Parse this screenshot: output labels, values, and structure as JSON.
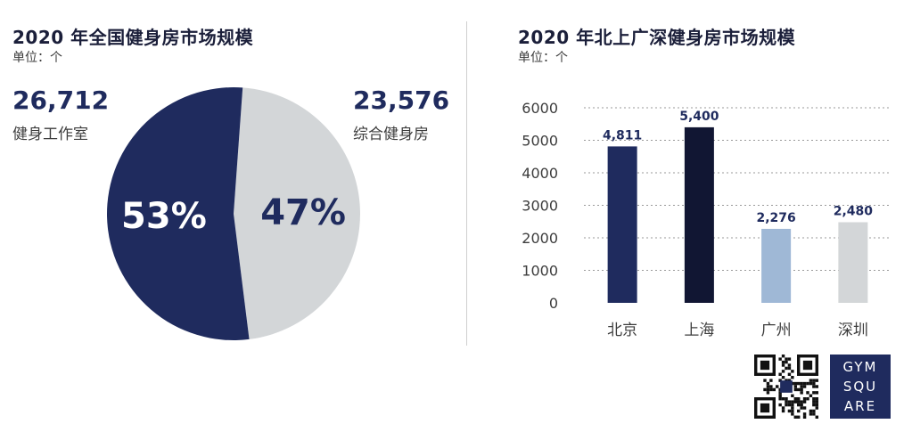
{
  "pie_panel": {
    "title": "2020 年全国健身房市场规模",
    "unit": "单位：个"
  },
  "bar_panel": {
    "title": "2020 年北上广深健身房市场规模",
    "unit": "单位：个"
  },
  "logo": {
    "lines": [
      "GYM",
      "SQU",
      "ARE"
    ]
  },
  "colors": {
    "navy": "#1f2b5e",
    "dark": "#111633",
    "light_blue": "#9fb8d6",
    "light_gray": "#d3d6d8",
    "pie_light": "#d3d6d8"
  },
  "chart_data": [
    {
      "type": "pie",
      "slices": [
        {
          "label": "健身工作室",
          "value": 26712,
          "value_text": "26,712",
          "percent_text": "53%",
          "color": "#1f2b5e"
        },
        {
          "label": "综合健身房",
          "value": 23576,
          "value_text": "23,576",
          "percent_text": "47%",
          "color": "#d3d6d8"
        }
      ]
    },
    {
      "type": "bar",
      "categories": [
        "北京",
        "上海",
        "广州",
        "深圳"
      ],
      "values": [
        4811,
        5400,
        2276,
        2480
      ],
      "value_labels": [
        "4,811",
        "5,400",
        "2,276",
        "2,480"
      ],
      "colors": [
        "#1f2b5e",
        "#111633",
        "#9fb8d6",
        "#d3d6d8"
      ],
      "ylim": [
        0,
        6000
      ],
      "yticks": [
        "0",
        "1000",
        "2000",
        "3000",
        "4000",
        "5000",
        "6000"
      ],
      "grid": true
    }
  ]
}
